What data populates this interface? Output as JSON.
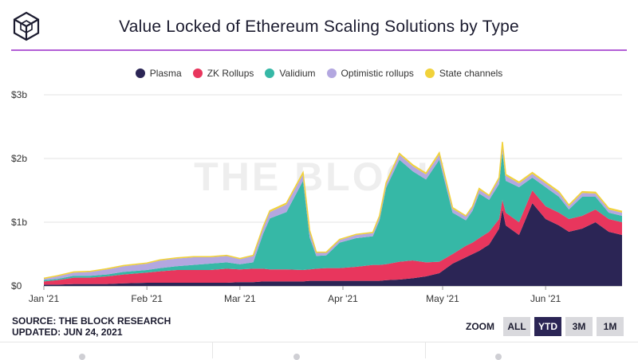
{
  "header": {
    "title": "Value Locked of Ethereum Scaling Solutions by Type",
    "logo_icon": "cube-icon"
  },
  "legend": [
    {
      "name": "Plasma",
      "color": "#2b2555"
    },
    {
      "name": "ZK Rollups",
      "color": "#e8365d"
    },
    {
      "name": "Validium",
      "color": "#36b8a6"
    },
    {
      "name": "Optimistic rollups",
      "color": "#b3a7e0"
    },
    {
      "name": "State channels",
      "color": "#f1d23a"
    }
  ],
  "footer": {
    "source": "SOURCE: THE BLOCK RESEARCH",
    "updated": "UPDATED: JUN 24, 2021"
  },
  "zoom": {
    "label": "ZOOM",
    "options": [
      "ALL",
      "YTD",
      "3M",
      "1M"
    ],
    "active": "YTD"
  },
  "watermark": "THE BLOCK",
  "chart_data": {
    "type": "area",
    "stacked": true,
    "legend_position": "top",
    "grid": true,
    "y_axis": {
      "min": 0,
      "max": 3,
      "unit": "billion USD",
      "ticks": [
        0,
        1,
        2,
        3
      ],
      "tick_labels": [
        "$0",
        "$1b",
        "$2b",
        "$3b"
      ]
    },
    "x_axis": {
      "min": "2021-01-01",
      "max": "2021-06-24",
      "tick_labels": [
        "Jan '21",
        "Feb '21",
        "Mar '21",
        "Apr '21",
        "May '21",
        "Jun '21"
      ],
      "tick_dates": [
        "2021-01-01",
        "2021-02-01",
        "2021-03-01",
        "2021-04-01",
        "2021-05-01",
        "2021-06-01"
      ]
    },
    "x": [
      "2021-01-01",
      "2021-01-05",
      "2021-01-10",
      "2021-01-15",
      "2021-01-20",
      "2021-01-25",
      "2021-02-01",
      "2021-02-05",
      "2021-02-10",
      "2021-02-15",
      "2021-02-20",
      "2021-02-25",
      "2021-03-01",
      "2021-03-05",
      "2021-03-08",
      "2021-03-10",
      "2021-03-15",
      "2021-03-20",
      "2021-03-22",
      "2021-03-24",
      "2021-03-27",
      "2021-03-31",
      "2021-04-05",
      "2021-04-10",
      "2021-04-12",
      "2021-04-14",
      "2021-04-18",
      "2021-04-22",
      "2021-04-26",
      "2021-04-30",
      "2021-05-04",
      "2021-05-08",
      "2021-05-10",
      "2021-05-12",
      "2021-05-15",
      "2021-05-18",
      "2021-05-19",
      "2021-05-20",
      "2021-05-24",
      "2021-05-28",
      "2021-06-01",
      "2021-06-05",
      "2021-06-08",
      "2021-06-12",
      "2021-06-16",
      "2021-06-20",
      "2021-06-24"
    ],
    "series": [
      {
        "name": "Plasma",
        "values": [
          0.02,
          0.02,
          0.03,
          0.03,
          0.03,
          0.04,
          0.05,
          0.05,
          0.05,
          0.05,
          0.05,
          0.05,
          0.06,
          0.06,
          0.07,
          0.07,
          0.07,
          0.07,
          0.08,
          0.08,
          0.08,
          0.08,
          0.08,
          0.08,
          0.08,
          0.09,
          0.1,
          0.12,
          0.15,
          0.2,
          0.35,
          0.45,
          0.5,
          0.55,
          0.65,
          0.9,
          1.2,
          0.95,
          0.8,
          1.3,
          1.05,
          0.95,
          0.85,
          0.9,
          1.0,
          0.85,
          0.8
        ]
      },
      {
        "name": "ZK Rollups",
        "values": [
          0.05,
          0.07,
          0.1,
          0.1,
          0.12,
          0.14,
          0.16,
          0.18,
          0.2,
          0.2,
          0.2,
          0.22,
          0.2,
          0.21,
          0.2,
          0.19,
          0.19,
          0.18,
          0.18,
          0.19,
          0.2,
          0.2,
          0.22,
          0.25,
          0.25,
          0.25,
          0.28,
          0.28,
          0.22,
          0.18,
          0.15,
          0.18,
          0.18,
          0.2,
          0.2,
          0.15,
          0.15,
          0.2,
          0.2,
          0.2,
          0.2,
          0.2,
          0.2,
          0.2,
          0.2,
          0.2,
          0.2
        ]
      },
      {
        "name": "Validium",
        "values": [
          0.02,
          0.02,
          0.03,
          0.03,
          0.03,
          0.04,
          0.04,
          0.05,
          0.06,
          0.08,
          0.1,
          0.1,
          0.08,
          0.1,
          0.55,
          0.8,
          0.9,
          1.4,
          0.5,
          0.2,
          0.2,
          0.4,
          0.45,
          0.45,
          0.7,
          1.2,
          1.6,
          1.4,
          1.3,
          1.6,
          0.65,
          0.4,
          0.5,
          0.7,
          0.5,
          0.55,
          0.75,
          0.5,
          0.55,
          0.2,
          0.3,
          0.25,
          0.15,
          0.3,
          0.2,
          0.1,
          0.1
        ]
      },
      {
        "name": "Optimistic rollups",
        "values": [
          0.02,
          0.04,
          0.05,
          0.06,
          0.08,
          0.09,
          0.1,
          0.12,
          0.12,
          0.12,
          0.1,
          0.1,
          0.08,
          0.1,
          0.1,
          0.1,
          0.12,
          0.1,
          0.1,
          0.05,
          0.04,
          0.04,
          0.05,
          0.05,
          0.06,
          0.06,
          0.08,
          0.08,
          0.08,
          0.08,
          0.06,
          0.06,
          0.06,
          0.06,
          0.06,
          0.08,
          0.1,
          0.08,
          0.06,
          0.06,
          0.06,
          0.06,
          0.05,
          0.06,
          0.05,
          0.05,
          0.05
        ]
      },
      {
        "name": "State channels",
        "values": [
          0.01,
          0.01,
          0.01,
          0.01,
          0.01,
          0.01,
          0.01,
          0.01,
          0.01,
          0.01,
          0.01,
          0.01,
          0.01,
          0.01,
          0.01,
          0.02,
          0.02,
          0.03,
          0.01,
          0.01,
          0.01,
          0.01,
          0.01,
          0.01,
          0.01,
          0.02,
          0.02,
          0.02,
          0.02,
          0.03,
          0.02,
          0.01,
          0.01,
          0.02,
          0.01,
          0.02,
          0.06,
          0.02,
          0.02,
          0.02,
          0.02,
          0.02,
          0.02,
          0.02,
          0.02,
          0.02,
          0.02
        ]
      }
    ]
  }
}
